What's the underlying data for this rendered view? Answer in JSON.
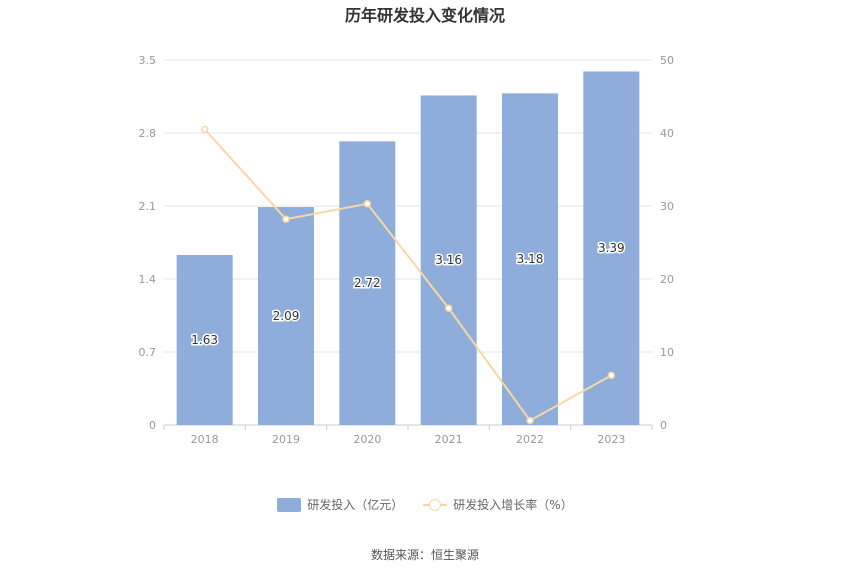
{
  "title": "历年研发投入变化情况",
  "source": "数据来源：恒生聚源",
  "colors": {
    "bar": "#8eadda",
    "line": "#f7d8a2",
    "axis_text": "#999999",
    "grid": "#e6e6e6"
  },
  "chart_data": {
    "type": "bar",
    "categories": [
      "2018",
      "2019",
      "2020",
      "2021",
      "2022",
      "2023"
    ],
    "series": [
      {
        "name": "研发投入（亿元）",
        "type": "bar",
        "axis": "left",
        "values": [
          1.63,
          2.09,
          2.72,
          3.16,
          3.18,
          3.39
        ],
        "labels": [
          "1.63",
          "2.09",
          "2.72",
          "3.16",
          "3.18",
          "3.39"
        ]
      },
      {
        "name": "研发投入增长率（%）",
        "type": "line",
        "axis": "right",
        "values": [
          40.5,
          28.2,
          30.3,
          16.0,
          0.6,
          6.8
        ]
      }
    ],
    "y_left": {
      "min": 0,
      "max": 3.5,
      "ticks": [
        "0",
        "0.7",
        "1.4",
        "2.1",
        "2.8",
        "3.5"
      ]
    },
    "y_right": {
      "min": 0,
      "max": 50,
      "ticks": [
        "0",
        "10",
        "20",
        "30",
        "40",
        "50"
      ]
    },
    "grid": true,
    "legend_position": "bottom"
  }
}
